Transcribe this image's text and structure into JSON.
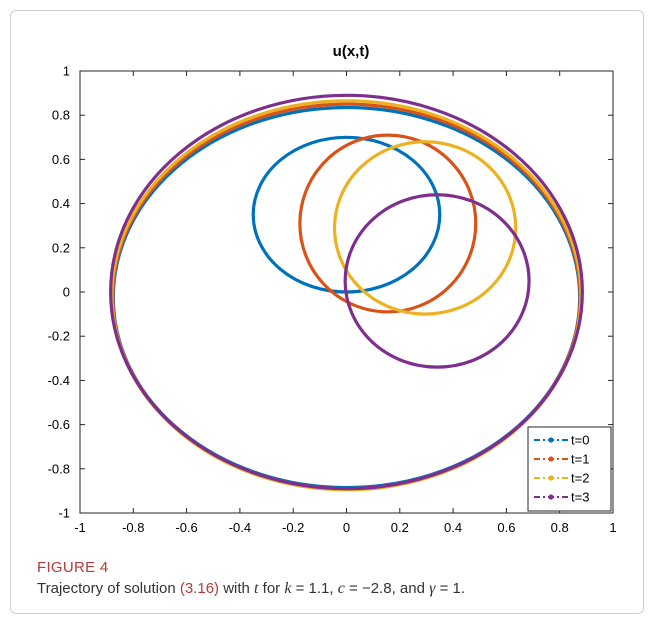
{
  "chart_data": {
    "type": "line",
    "title": "u(x,t)",
    "xlabel": "",
    "ylabel": "",
    "xlim": [
      -1,
      1
    ],
    "ylim": [
      -1,
      1
    ],
    "xticks": [
      "-1",
      "-0.8",
      "-0.6",
      "-0.4",
      "-0.2",
      "0",
      "0.2",
      "0.4",
      "0.6",
      "0.8",
      "1"
    ],
    "yticks": [
      "1",
      "0.8",
      "0.6",
      "0.4",
      "0.2",
      "0",
      "-0.2",
      "-0.4",
      "-0.6",
      "-0.8",
      "-1"
    ],
    "grid": false,
    "legend_position": "bottom-right",
    "series": [
      {
        "name": "t=0",
        "color": "#0072bd",
        "small": {
          "cx": 0.0,
          "cy": 0.35,
          "rx": 0.35,
          "ry": 0.35
        },
        "big": {
          "cx": 0.0,
          "cy": -0.025,
          "rx": 0.875,
          "ry": 0.86
        }
      },
      {
        "name": "t=1",
        "color": "#d95319",
        "small": {
          "cx": 0.155,
          "cy": 0.31,
          "rx": 0.33,
          "ry": 0.4
        },
        "big": {
          "cx": 0.0,
          "cy": -0.02,
          "rx": 0.877,
          "ry": 0.87
        }
      },
      {
        "name": "t=2",
        "color": "#edb120",
        "small": {
          "cx": 0.295,
          "cy": 0.29,
          "rx": 0.34,
          "ry": 0.39
        },
        "big": {
          "cx": 0.0,
          "cy": -0.015,
          "rx": 0.88,
          "ry": 0.88
        }
      },
      {
        "name": "t=3",
        "color": "#7e2f8e",
        "small": {
          "cx": 0.34,
          "cy": 0.05,
          "rx": 0.345,
          "ry": 0.39
        },
        "big": {
          "cx": 0.0,
          "cy": 0.0,
          "rx": 0.885,
          "ry": 0.89
        }
      }
    ]
  },
  "caption": {
    "label": "FIGURE 4",
    "text_before": "Trajectory of solution ",
    "ref": "(3.16)",
    "text_after": " with ",
    "var_t": "t",
    "text_for": " for ",
    "var_k": "k",
    "k_val": " = 1.1, ",
    "var_c": "c",
    "c_val": " = −2.8, and ",
    "var_g": "γ",
    "g_val": " = 1."
  }
}
